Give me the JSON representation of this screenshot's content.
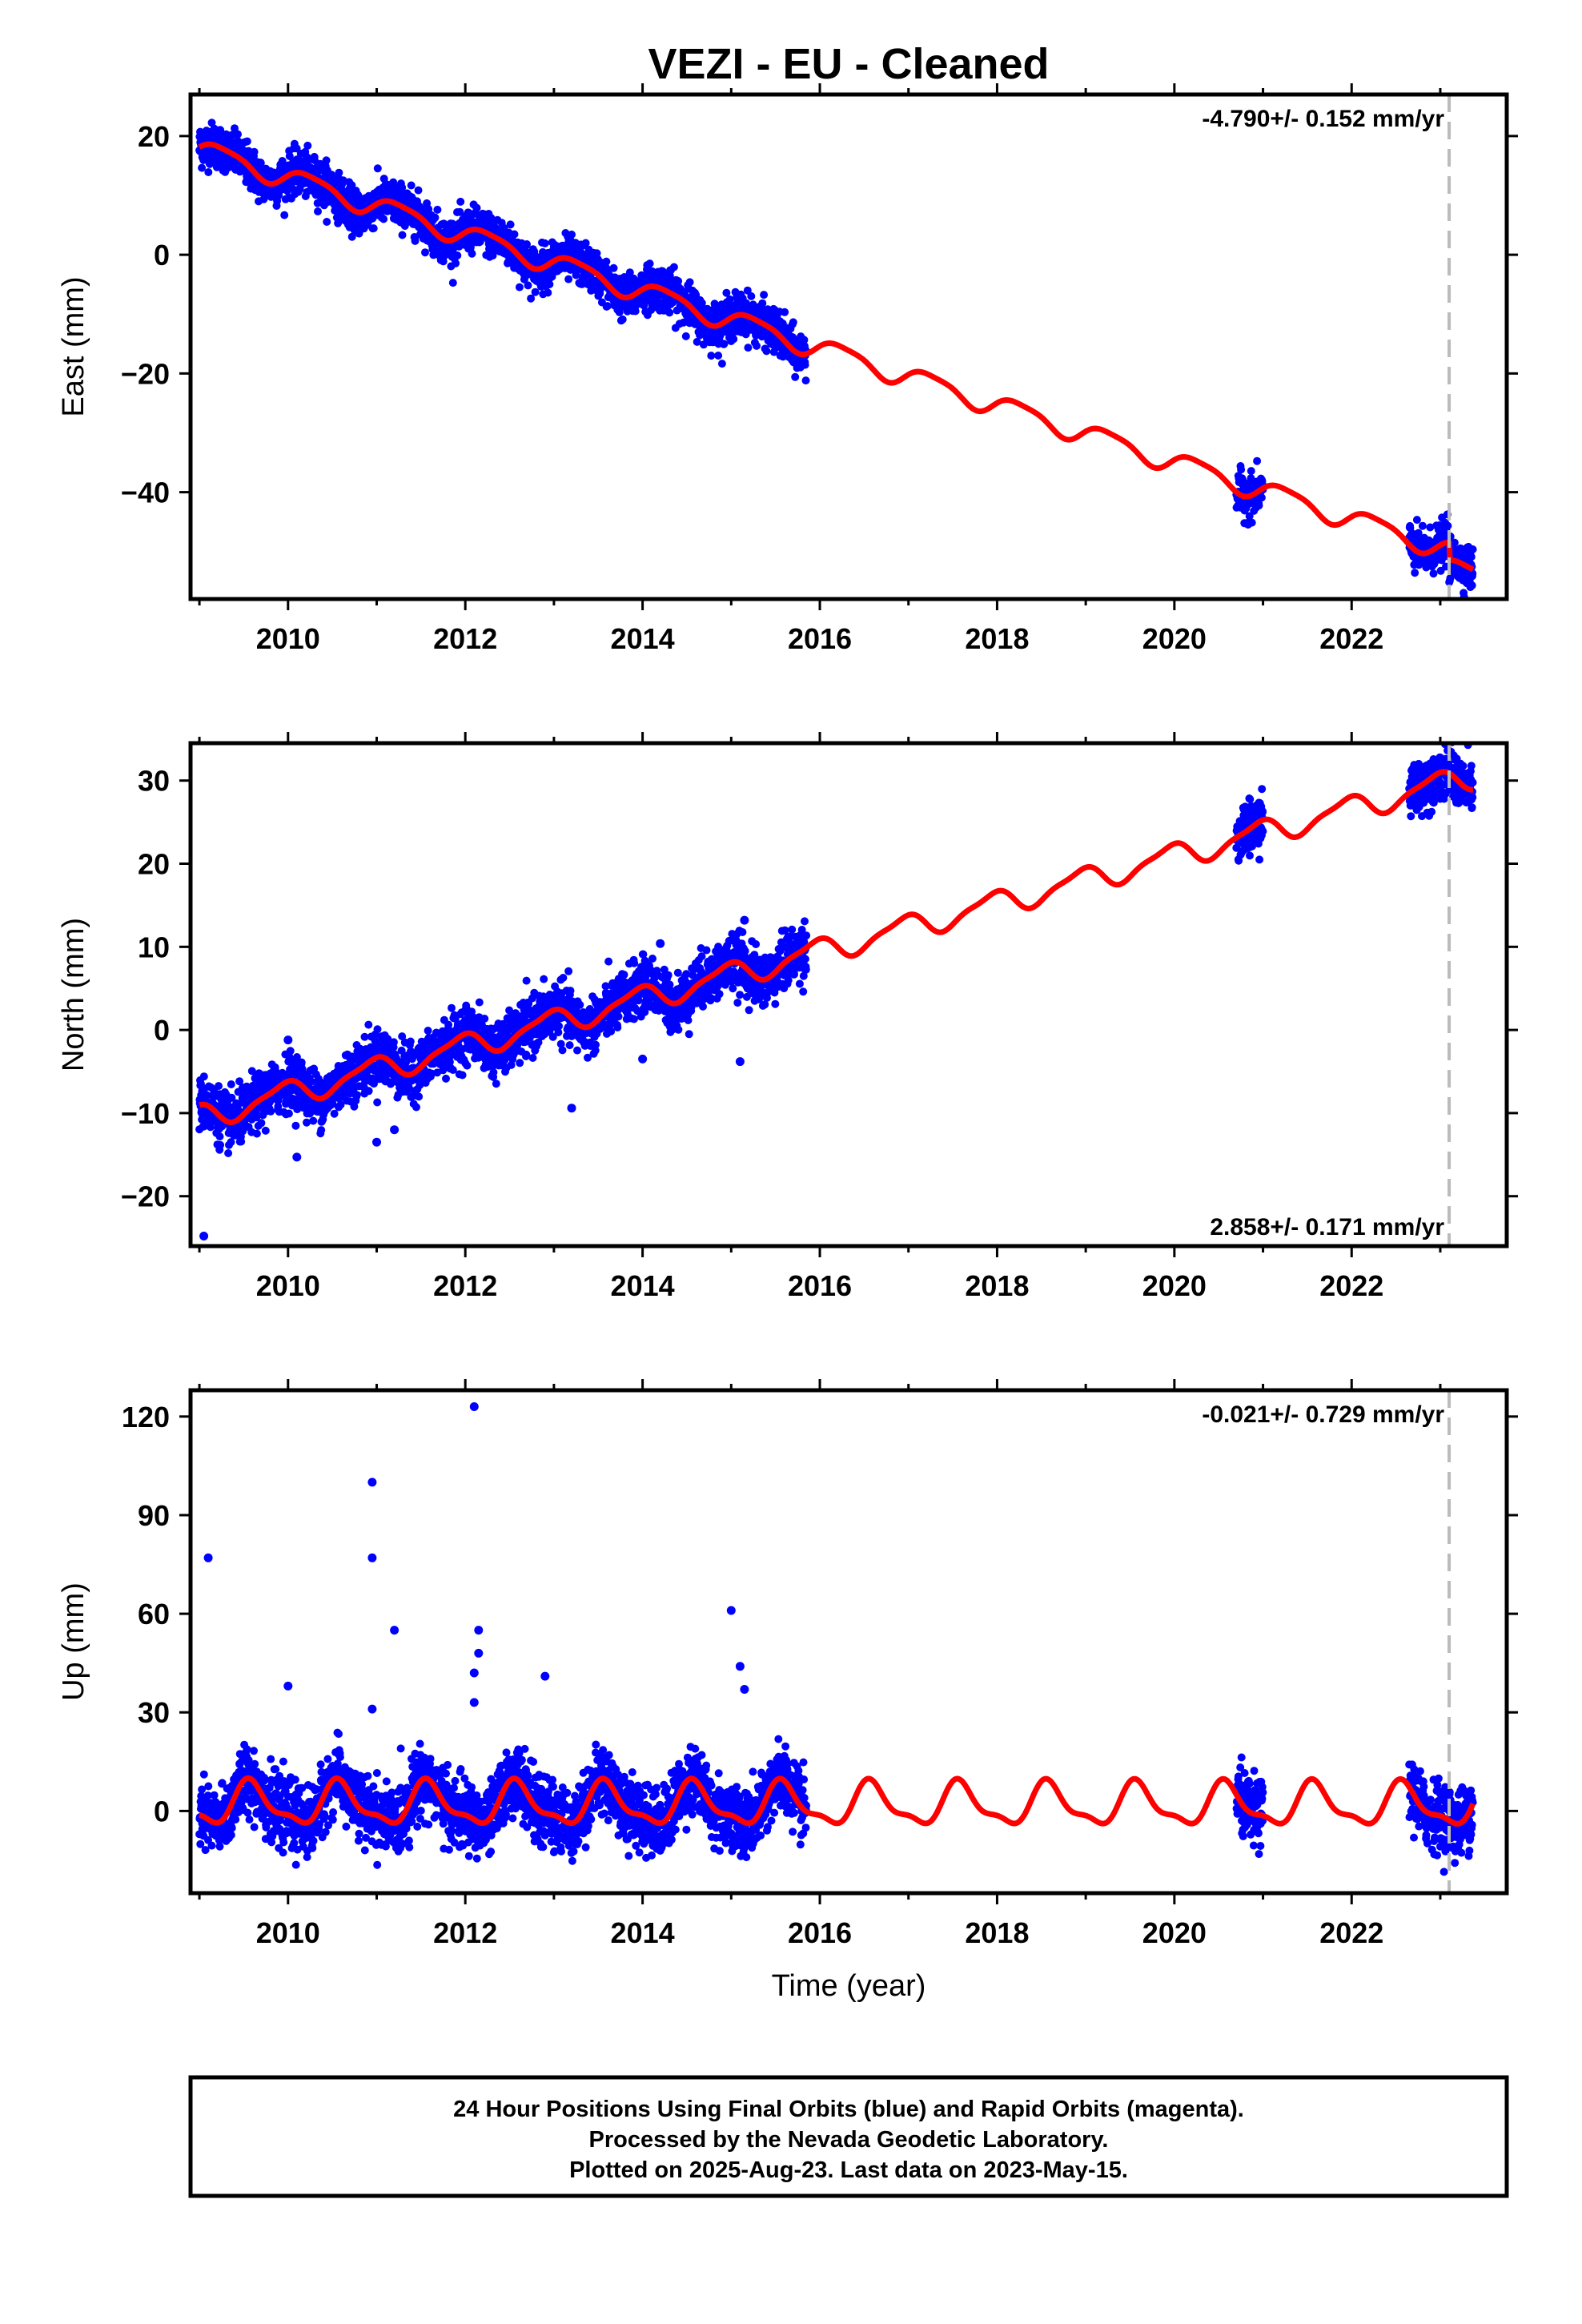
{
  "title": "VEZI  - EU - Cleaned",
  "xlabel": "Time (year)",
  "footer": {
    "line1": "24 Hour Positions Using Final Orbits (blue) and Rapid Orbits (magenta).",
    "line2": "Processed by the Nevada Geodetic Laboratory.",
    "line3": "Plotted on 2025-Aug-23. Last data on 2023-May-15."
  },
  "colors": {
    "observations": "#0000ff",
    "model": "#ff0000",
    "marker_line": "#bbbbbb"
  },
  "chart_data": [
    {
      "type": "scatter",
      "name": "east",
      "ylabel": "East (mm)",
      "rate_text": "-4.790+/- 0.152 mm/yr",
      "rate_position": "top-right",
      "xlim": [
        2008.9,
        2023.75
      ],
      "ylim": [
        -58,
        27
      ],
      "yticks": [
        20,
        0,
        -20,
        -40
      ],
      "ytick_labels": [
        "20",
        "0",
        "−20",
        "−40"
      ],
      "xticks": [
        2010,
        2012,
        2014,
        2016,
        2018,
        2020,
        2022
      ],
      "xtick_labels": [
        "2010",
        "2012",
        "2014",
        "2016",
        "2018",
        "2020",
        "2022"
      ],
      "equipment_change_line_x": 2023.1,
      "model": {
        "rate": -4.79,
        "intercept_2009": 17.8,
        "annual_amp": 1.7,
        "annual_phase": 0.0,
        "semiannual_amp": 0.4,
        "semiannual_phase": 1.0,
        "offset": {
          "x": 2023.1,
          "dy": -3.0
        }
      },
      "data_segments": [
        [
          2009.0,
          2015.85
        ],
        [
          2020.7,
          2021.0
        ],
        [
          2022.65,
          2023.37
        ]
      ],
      "noise": 1.8,
      "outliers": []
    },
    {
      "type": "scatter",
      "name": "north",
      "ylabel": "North (mm)",
      "rate_text": "2.858+/- 0.171 mm/yr",
      "rate_position": "bottom-right",
      "xlim": [
        2008.9,
        2023.75
      ],
      "ylim": [
        -26,
        34.5
      ],
      "yticks": [
        30,
        20,
        10,
        0,
        -10,
        -20
      ],
      "ytick_labels": [
        "30",
        "20",
        "10",
        "0",
        "−10",
        "−20"
      ],
      "xticks": [
        2010,
        2012,
        2014,
        2016,
        2018,
        2020,
        2022
      ],
      "xtick_labels": [
        "2010",
        "2012",
        "2014",
        "2016",
        "2018",
        "2020",
        "2022"
      ],
      "equipment_change_line_x": 2023.1,
      "model": {
        "rate": 2.858,
        "intercept_2009": -10.5,
        "annual_amp": 1.4,
        "annual_phase": 2.0,
        "semiannual_amp": 0.4,
        "semiannual_phase": 0.5,
        "offset": {
          "x": 2023.1,
          "dy": 0.0
        }
      },
      "data_segments": [
        [
          2009.0,
          2015.85
        ],
        [
          2020.7,
          2021.0
        ],
        [
          2022.65,
          2023.37
        ]
      ],
      "noise": 1.6,
      "outliers": [
        [
          2009.05,
          -24.8
        ],
        [
          2010.1,
          -15.3
        ],
        [
          2011.0,
          -13.5
        ],
        [
          2011.2,
          -12.0
        ],
        [
          2013.2,
          -9.4
        ],
        [
          2014.0,
          -3.5
        ],
        [
          2015.1,
          -3.8
        ],
        [
          2015.15,
          13.2
        ],
        [
          2014.2,
          10.4
        ],
        [
          2010.0,
          -1.2
        ]
      ]
    },
    {
      "type": "scatter",
      "name": "up",
      "ylabel": "Up (mm)",
      "rate_text": "-0.021+/- 0.729 mm/yr",
      "rate_position": "top-right",
      "xlim": [
        2008.9,
        2023.75
      ],
      "ylim": [
        -25,
        128
      ],
      "yticks": [
        120,
        90,
        60,
        30,
        0
      ],
      "ytick_labels": [
        "120",
        "90",
        "60",
        "30",
        "0"
      ],
      "xticks": [
        2010,
        2012,
        2014,
        2016,
        2018,
        2020,
        2022
      ],
      "xtick_labels": [
        "2010",
        "2012",
        "2014",
        "2016",
        "2018",
        "2020",
        "2022"
      ],
      "equipment_change_line_x": 2023.1,
      "model": {
        "rate": -0.021,
        "intercept_2009": 2.0,
        "annual_amp": 6.0,
        "annual_phase": 4.2,
        "semiannual_amp": 2.2,
        "semiannual_phase": 1.2,
        "offset": {
          "x": 2023.1,
          "dy": 0.0
        }
      },
      "data_segments": [
        [
          2009.0,
          2015.85
        ],
        [
          2020.7,
          2021.0
        ],
        [
          2022.65,
          2023.37
        ]
      ],
      "noise": 5.0,
      "outliers": [
        [
          2009.1,
          77
        ],
        [
          2010.95,
          100
        ],
        [
          2010.95,
          77
        ],
        [
          2011.2,
          55
        ],
        [
          2012.1,
          123
        ],
        [
          2012.15,
          55
        ],
        [
          2012.15,
          48
        ],
        [
          2012.1,
          42
        ],
        [
          2012.1,
          33
        ],
        [
          2012.9,
          41
        ],
        [
          2015.0,
          61
        ],
        [
          2015.1,
          44
        ],
        [
          2015.15,
          37
        ],
        [
          2010.0,
          38
        ],
        [
          2010.95,
          31
        ]
      ]
    }
  ]
}
